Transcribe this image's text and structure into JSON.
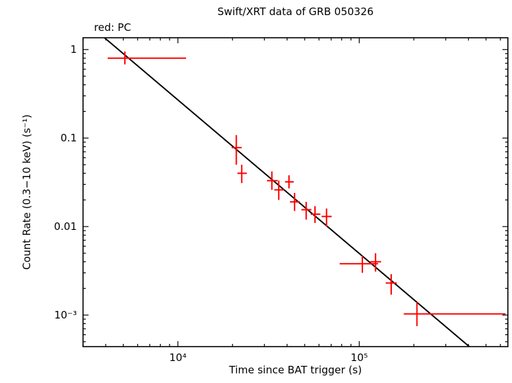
{
  "chart_data": {
    "type": "scatter",
    "title": "Swift/XRT data of GRB 050326",
    "annotation": "red: PC",
    "xlabel": "Time since BAT trigger (s)",
    "ylabel": "Count Rate (0.3−10 keV) (s⁻¹)",
    "xscale": "log",
    "yscale": "log",
    "xlim": [
      3000,
      660000
    ],
    "ylim": [
      0.00044,
      1.36
    ],
    "grid": false,
    "frame_color": "#000000",
    "x_ticks": [
      {
        "v": 10000,
        "label": "10⁴"
      },
      {
        "v": 100000,
        "label": "10⁵"
      }
    ],
    "y_ticks": [
      {
        "v": 1,
        "label": "1"
      },
      {
        "v": 0.1,
        "label": "0.1"
      },
      {
        "v": 0.01,
        "label": "0.01"
      },
      {
        "v": 0.001,
        "label": "10⁻³"
      }
    ],
    "points_format": [
      "t",
      "t_lo",
      "t_hi",
      "rate",
      "rate_lo",
      "rate_hi"
    ],
    "series": [
      {
        "name": "PC",
        "color": "#ff0000",
        "marker": "cross-error-bars",
        "points": [
          [
            5100,
            4100,
            11100,
            0.8,
            0.68,
            0.95
          ],
          [
            21000,
            19800,
            22500,
            0.078,
            0.05,
            0.108
          ],
          [
            22500,
            21300,
            24000,
            0.04,
            0.031,
            0.05
          ],
          [
            33000,
            31000,
            35500,
            0.033,
            0.026,
            0.042
          ],
          [
            36000,
            34000,
            38500,
            0.026,
            0.02,
            0.033
          ],
          [
            41000,
            39000,
            43500,
            0.032,
            0.027,
            0.038
          ],
          [
            44000,
            41500,
            47000,
            0.019,
            0.015,
            0.024
          ],
          [
            51000,
            48000,
            54500,
            0.0155,
            0.012,
            0.019
          ],
          [
            57000,
            54000,
            61000,
            0.0138,
            0.011,
            0.017
          ],
          [
            66000,
            62000,
            70500,
            0.013,
            0.01,
            0.016
          ],
          [
            104000,
            78000,
            127000,
            0.0038,
            0.003,
            0.0047
          ],
          [
            123000,
            115000,
            132000,
            0.004,
            0.0031,
            0.005
          ],
          [
            150000,
            140000,
            161000,
            0.0023,
            0.0017,
            0.0029
          ],
          [
            208000,
            176000,
            640000,
            0.00103,
            0.00075,
            0.0014
          ]
        ]
      }
    ],
    "fit": {
      "type": "power-law",
      "ref_t": 10000,
      "ref_rate": 0.27,
      "slope": -1.735,
      "color": "#000000"
    }
  }
}
